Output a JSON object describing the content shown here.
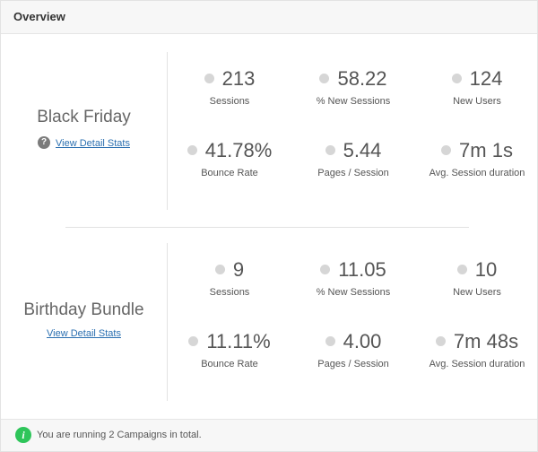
{
  "header": {
    "title": "Overview"
  },
  "campaigns": [
    {
      "name": "Black Friday",
      "link_label": "View Detail Stats",
      "has_help_icon": true,
      "stats": [
        {
          "value": "213",
          "label": "Sessions"
        },
        {
          "value": "58.22",
          "label": "% New Sessions"
        },
        {
          "value": "124",
          "label": "New Users"
        },
        {
          "value": "41.78%",
          "label": "Bounce Rate"
        },
        {
          "value": "5.44",
          "label": "Pages / Session"
        },
        {
          "value": "7m 1s",
          "label": "Avg. Session duration"
        }
      ]
    },
    {
      "name": "Birthday Bundle",
      "link_label": "View Detail Stats",
      "has_help_icon": false,
      "stats": [
        {
          "value": "9",
          "label": "Sessions"
        },
        {
          "value": "11.05",
          "label": "% New Sessions"
        },
        {
          "value": "10",
          "label": "New Users"
        },
        {
          "value": "11.11%",
          "label": "Bounce Rate"
        },
        {
          "value": "4.00",
          "label": "Pages / Session"
        },
        {
          "value": "7m 48s",
          "label": "Avg. Session duration"
        }
      ]
    }
  ],
  "footer": {
    "text": "You are running 2 Campaigns in total."
  },
  "colors": {
    "footer_icon": "#2ec55a",
    "link": "#2a6fb0",
    "dot": "#d6d6d6"
  },
  "icons": {
    "help": "question-circle-icon",
    "footer": "info-circle-icon"
  }
}
